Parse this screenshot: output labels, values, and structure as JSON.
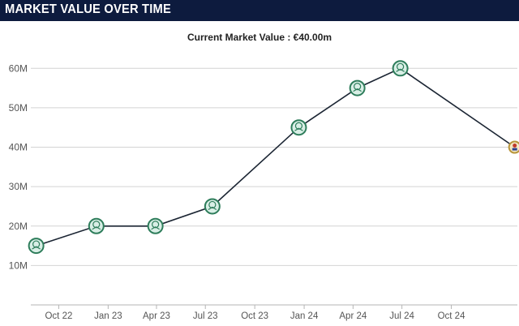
{
  "header": {
    "title": "MARKET VALUE OVER TIME"
  },
  "subtitle": "Current Market Value : €40.00m",
  "colors": {
    "header_bg": "#0d1b3e",
    "marker_fill": "#d9efe6",
    "marker_stroke": "#2e7d5b",
    "last_marker_fill": "#f3e9c7",
    "last_marker_stroke": "#b8953a",
    "line": "#1b2533"
  },
  "chart_data": {
    "type": "line",
    "title": "",
    "xlabel": "",
    "ylabel": "",
    "ylim": [
      0,
      65
    ],
    "xlim": [
      "2022-08-10",
      "2025-02-01"
    ],
    "y_ticks": [
      {
        "value": 10,
        "label": "10M"
      },
      {
        "value": 20,
        "label": "20M"
      },
      {
        "value": 30,
        "label": "30M"
      },
      {
        "value": 40,
        "label": "40M"
      },
      {
        "value": 50,
        "label": "50M"
      },
      {
        "value": 60,
        "label": "60M"
      }
    ],
    "x_ticks": [
      {
        "date": "2022-10-01",
        "label": "Oct 22"
      },
      {
        "date": "2023-01-01",
        "label": "Jan 23"
      },
      {
        "date": "2023-04-01",
        "label": "Apr 23"
      },
      {
        "date": "2023-07-01",
        "label": "Jul 23"
      },
      {
        "date": "2023-10-01",
        "label": "Oct 23"
      },
      {
        "date": "2024-01-01",
        "label": "Jan 24"
      },
      {
        "date": "2024-04-01",
        "label": "Apr 24"
      },
      {
        "date": "2024-07-01",
        "label": "Jul 24"
      },
      {
        "date": "2024-10-01",
        "label": "Oct 24"
      }
    ],
    "grid": true,
    "series": [
      {
        "points": [
          {
            "x": "2022-08-20",
            "y": 15
          },
          {
            "x": "2022-12-10",
            "y": 20
          },
          {
            "x": "2023-03-30",
            "y": 20
          },
          {
            "x": "2023-07-14",
            "y": 25
          },
          {
            "x": "2023-12-22",
            "y": 45
          },
          {
            "x": "2024-04-09",
            "y": 55
          },
          {
            "x": "2024-06-28",
            "y": 60
          },
          {
            "x": "2025-01-27",
            "y": 40
          }
        ]
      }
    ]
  }
}
